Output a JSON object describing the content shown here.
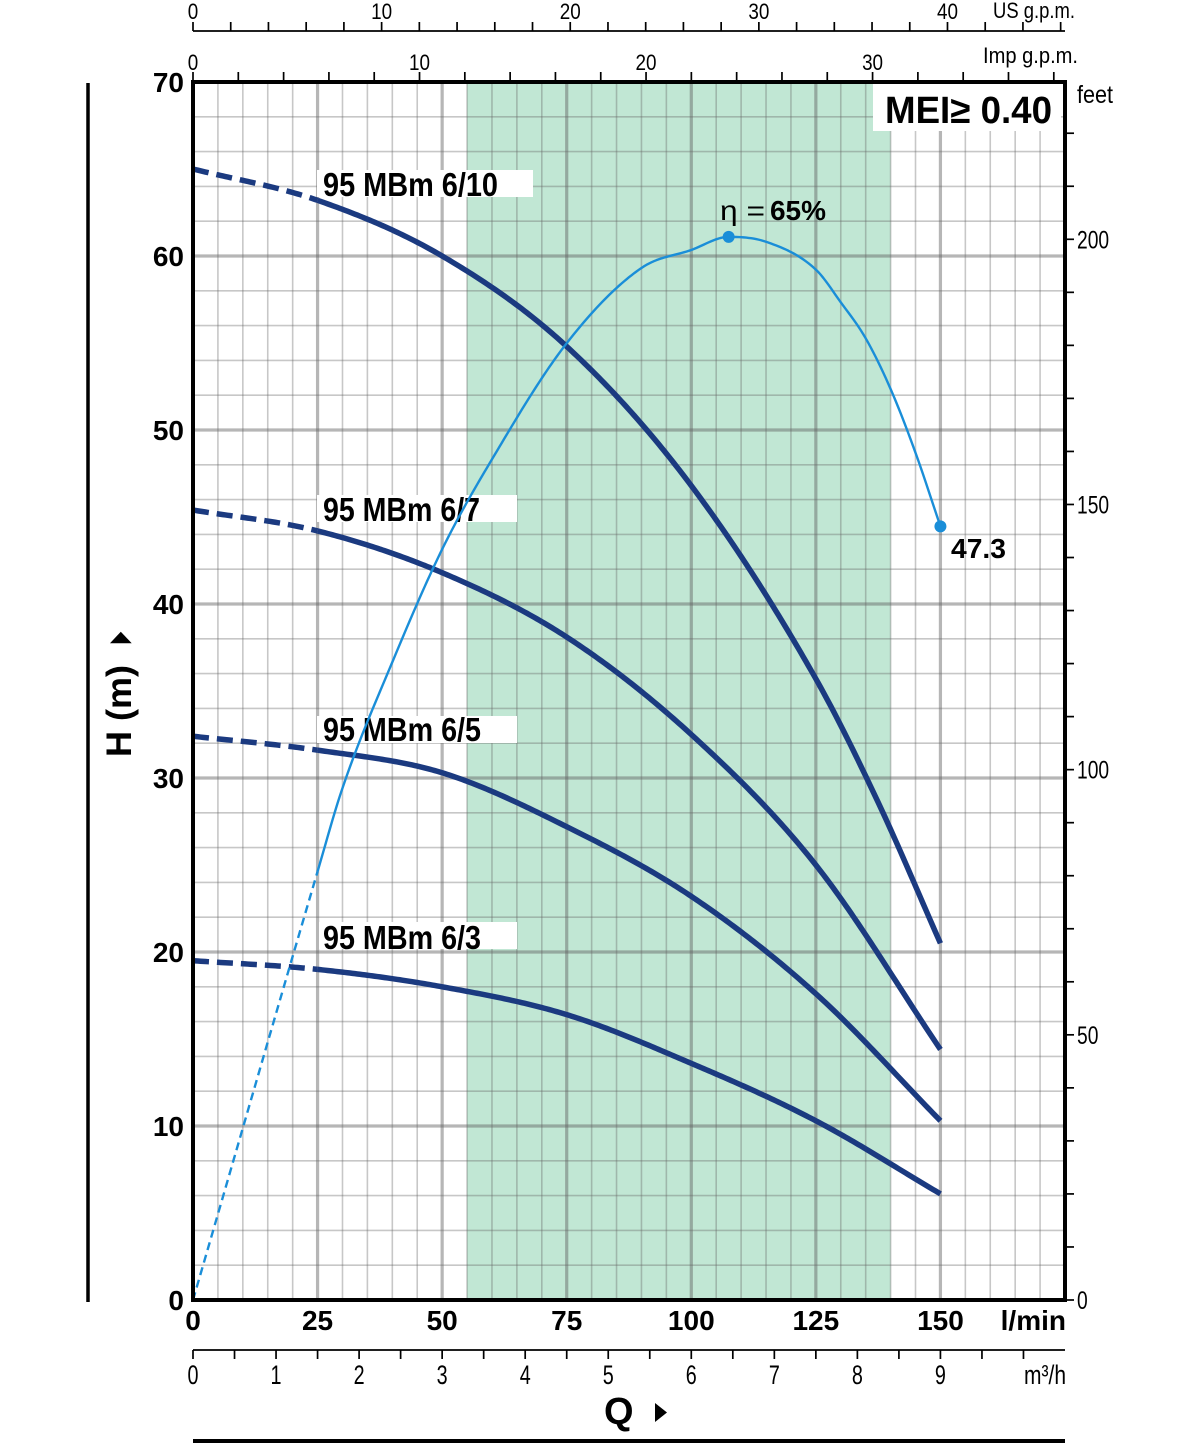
{
  "chart_data": {
    "type": "line",
    "title": "",
    "xlabel": "Q",
    "ylabel": "H (m)",
    "x_unit": "l/min",
    "xlim": [
      0,
      175
    ],
    "ylim": [
      0,
      70
    ],
    "grid": true,
    "x_major_step": 25,
    "x_minor_step": 5,
    "y_major_step": 10,
    "y_minor_step": 2,
    "x_ticks": [
      0,
      25,
      50,
      75,
      100,
      125,
      150
    ],
    "x_tick_labels": [
      "0",
      "25",
      "50",
      "75",
      "100",
      "125",
      "150"
    ],
    "y_ticks": [
      0,
      10,
      20,
      30,
      40,
      50,
      60,
      70
    ],
    "y_tick_labels": [
      "0",
      "10",
      "20",
      "30",
      "40",
      "50",
      "60",
      "70"
    ],
    "band": {
      "x_range": [
        55,
        140
      ],
      "color": "#c1e7d4"
    },
    "secondary_axes": {
      "feet": {
        "label": "feet",
        "per_m": 3.28084,
        "minor_step": 10,
        "ticks": [
          0,
          50,
          100,
          150,
          200
        ],
        "tick_labels": [
          "0",
          "50",
          "100",
          "150",
          "200"
        ]
      },
      "us_gpm": {
        "label": "US g.p.m.",
        "lmin_per_unit": 3.78541,
        "minor_step": 2,
        "ticks": [
          0,
          10,
          20,
          30,
          40
        ],
        "tick_labels": [
          "0",
          "10",
          "20",
          "30",
          "40"
        ]
      },
      "imp_gpm": {
        "label": "Imp g.p.m.",
        "lmin_per_unit": 4.54609,
        "minor_step": 2,
        "ticks": [
          0,
          10,
          20,
          30
        ],
        "tick_labels": [
          "0",
          "10",
          "20",
          "30"
        ]
      },
      "m3h": {
        "label": "m³/h",
        "lmin_per_unit": 16.6667,
        "minor_step": 0.5,
        "ticks": [
          0,
          1,
          2,
          3,
          4,
          5,
          6,
          7,
          8,
          9
        ],
        "tick_labels": [
          "0",
          "1",
          "2",
          "3",
          "4",
          "5",
          "6",
          "7",
          "8",
          "9"
        ]
      }
    },
    "series": [
      {
        "name": "95 MBm 6/10",
        "color": "#1b3a80",
        "dashed_until": 25,
        "x": [
          0,
          25,
          50,
          75,
          100,
          125,
          137.5,
          150
        ],
        "y": [
          65.0,
          63.2,
          60.0,
          54.8,
          46.8,
          35.7,
          28.6,
          20.5
        ]
      },
      {
        "name": "95 MBm 6/7",
        "color": "#1b3a80",
        "dashed_until": 25,
        "x": [
          0,
          25,
          50,
          75,
          100,
          125,
          150
        ],
        "y": [
          45.4,
          44.2,
          41.8,
          38.1,
          32.5,
          25.0,
          14.4
        ]
      },
      {
        "name": "95 MBm 6/5",
        "color": "#1b3a80",
        "dashed_until": 25,
        "x": [
          0,
          25,
          50,
          75,
          100,
          125,
          150
        ],
        "y": [
          32.4,
          31.6,
          30.3,
          27.2,
          23.2,
          17.6,
          10.3
        ]
      },
      {
        "name": "95 MBm 6/3",
        "color": "#1b3a80",
        "dashed_until": 25,
        "x": [
          0,
          25,
          50,
          75,
          100,
          125,
          150
        ],
        "y": [
          19.5,
          19.0,
          18.0,
          16.4,
          13.6,
          10.3,
          6.1
        ]
      }
    ],
    "efficiency": {
      "name": "η",
      "unit": "%",
      "color": "#1a8ed8",
      "dashed_until": 25,
      "eta_lim": [
        0,
        74.47
      ],
      "x": [
        0,
        25,
        30,
        40,
        50,
        60,
        75,
        90,
        100,
        107.5,
        115,
        125,
        130,
        135,
        140,
        145,
        150
      ],
      "values": [
        0,
        26.2,
        31.3,
        39.0,
        45.9,
        51.4,
        58.5,
        63.1,
        64.2,
        65.0,
        64.7,
        63.0,
        61.0,
        58.8,
        55.7,
        51.8,
        47.3
      ],
      "peak": {
        "x": 107.5,
        "value": 65.0,
        "label_prefix": "η =",
        "label": "65%"
      },
      "end": {
        "x": 150,
        "value": 47.3,
        "label": "47.3"
      }
    },
    "annotation": "MEI≥ 0.40"
  }
}
